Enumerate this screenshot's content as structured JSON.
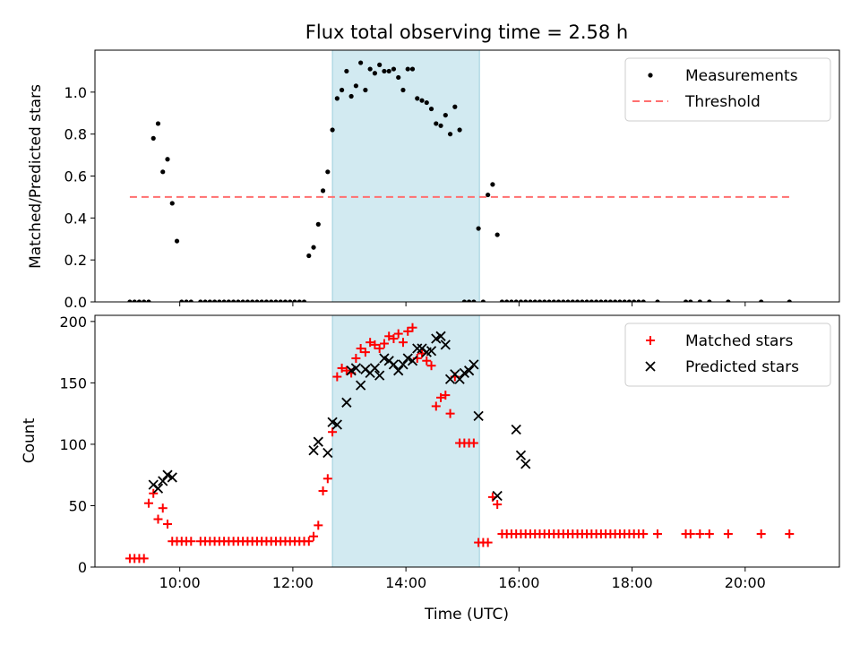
{
  "chart_data": [
    {
      "type": "scatter",
      "title": "Flux total observing time = 2.58 h",
      "xlabel": "",
      "ylabel": "Matched/Predicted stars",
      "ylim": [
        0,
        1.2
      ],
      "yticks": [
        "0.0",
        "0.2",
        "0.4",
        "0.6",
        "0.8",
        "1.0"
      ],
      "legend_position": "upper right",
      "shaded_interval": [
        "12:42",
        "15:18"
      ],
      "shade_color": "#add8e6",
      "series": [
        {
          "name": "Measurements",
          "marker": "dot",
          "color": "#000000",
          "x": [
            "09:07",
            "09:12",
            "09:17",
            "09:22",
            "09:27",
            "09:32",
            "09:37",
            "09:42",
            "09:47",
            "09:52",
            "09:57",
            "10:02",
            "10:07",
            "10:12",
            "10:22",
            "10:27",
            "10:32",
            "10:37",
            "10:42",
            "10:47",
            "10:52",
            "10:57",
            "11:02",
            "11:07",
            "11:12",
            "11:17",
            "11:22",
            "11:27",
            "11:32",
            "11:37",
            "11:42",
            "11:47",
            "11:52",
            "11:57",
            "12:02",
            "12:07",
            "12:12",
            "12:17",
            "12:22",
            "12:27",
            "12:32",
            "12:37",
            "12:42",
            "12:47",
            "12:52",
            "12:57",
            "13:02",
            "13:07",
            "13:12",
            "13:17",
            "13:22",
            "13:27",
            "13:32",
            "13:37",
            "13:42",
            "13:47",
            "13:52",
            "13:57",
            "14:02",
            "14:07",
            "14:12",
            "14:17",
            "14:22",
            "14:27",
            "14:32",
            "14:37",
            "14:42",
            "14:47",
            "14:52",
            "14:57",
            "15:02",
            "15:07",
            "15:12",
            "15:17",
            "15:22",
            "15:27",
            "15:32",
            "15:37",
            "15:42",
            "15:47",
            "15:52",
            "15:57",
            "16:02",
            "16:07",
            "16:12",
            "16:17",
            "16:22",
            "16:27",
            "16:32",
            "16:37",
            "16:42",
            "16:47",
            "16:52",
            "16:57",
            "17:02",
            "17:07",
            "17:12",
            "17:17",
            "17:22",
            "17:27",
            "17:32",
            "17:37",
            "17:42",
            "17:47",
            "17:52",
            "17:57",
            "18:02",
            "18:07",
            "18:12",
            "18:27",
            "18:57",
            "19:02",
            "19:12",
            "19:22",
            "19:42",
            "20:17",
            "20:47"
          ],
          "y": [
            0,
            0,
            0,
            0,
            0,
            0.78,
            0.85,
            0.62,
            0.68,
            0.47,
            0.29,
            0,
            0,
            0,
            0,
            0,
            0,
            0,
            0,
            0,
            0,
            0,
            0,
            0,
            0,
            0,
            0,
            0,
            0,
            0,
            0,
            0,
            0,
            0,
            0,
            0,
            0,
            0.22,
            0.26,
            0.37,
            0.53,
            0.62,
            0.82,
            0.97,
            1.01,
            1.1,
            0.98,
            1.03,
            1.14,
            1.01,
            1.11,
            1.09,
            1.13,
            1.1,
            1.1,
            1.11,
            1.07,
            1.01,
            1.11,
            1.11,
            0.97,
            0.96,
            0.95,
            0.92,
            0.85,
            0.84,
            0.89,
            0.8,
            0.93,
            0.82,
            0,
            0,
            0,
            0.35,
            0,
            0.51,
            0.56,
            0.32,
            0,
            0,
            0,
            0,
            0,
            0,
            0,
            0,
            0,
            0,
            0,
            0,
            0,
            0,
            0,
            0,
            0,
            0,
            0,
            0,
            0,
            0,
            0,
            0,
            0,
            0,
            0,
            0,
            0,
            0,
            0,
            0,
            0,
            0,
            0,
            0,
            0,
            0,
            0
          ]
        },
        {
          "name": "Threshold",
          "line_style": "dashed",
          "color": "#ff6f6f",
          "x": [
            "09:07",
            "20:47"
          ],
          "y": [
            0.5,
            0.5
          ]
        }
      ]
    },
    {
      "type": "scatter",
      "title": "",
      "xlabel": "Time (UTC)",
      "ylabel": "Count",
      "ylim": [
        0,
        205
      ],
      "yticks": [
        "0",
        "50",
        "100",
        "150",
        "200"
      ],
      "xlim": [
        "08:30",
        "21:40"
      ],
      "xticks": [
        "10:00",
        "12:00",
        "14:00",
        "16:00",
        "18:00",
        "20:00"
      ],
      "legend_position": "upper right",
      "shaded_interval": [
        "12:42",
        "15:18"
      ],
      "shade_color": "#add8e6",
      "series": [
        {
          "name": "Matched stars",
          "marker": "plus",
          "color": "#ff0000",
          "x": [
            "09:07",
            "09:12",
            "09:17",
            "09:22",
            "09:27",
            "09:32",
            "09:37",
            "09:42",
            "09:47",
            "09:52",
            "09:57",
            "10:02",
            "10:07",
            "10:12",
            "10:22",
            "10:27",
            "10:32",
            "10:37",
            "10:42",
            "10:47",
            "10:52",
            "10:57",
            "11:02",
            "11:07",
            "11:12",
            "11:17",
            "11:22",
            "11:27",
            "11:32",
            "11:37",
            "11:42",
            "11:47",
            "11:52",
            "11:57",
            "12:02",
            "12:07",
            "12:12",
            "12:17",
            "12:22",
            "12:27",
            "12:32",
            "12:37",
            "12:42",
            "12:47",
            "12:52",
            "12:57",
            "13:02",
            "13:07",
            "13:12",
            "13:17",
            "13:22",
            "13:27",
            "13:32",
            "13:37",
            "13:42",
            "13:47",
            "13:52",
            "13:57",
            "14:02",
            "14:07",
            "14:12",
            "14:17",
            "14:22",
            "14:27",
            "14:32",
            "14:37",
            "14:42",
            "14:47",
            "14:52",
            "14:57",
            "15:02",
            "15:07",
            "15:12",
            "15:17",
            "15:22",
            "15:27",
            "15:32",
            "15:37",
            "15:42",
            "15:47",
            "15:52",
            "15:57",
            "16:02",
            "16:07",
            "16:12",
            "16:17",
            "16:22",
            "16:27",
            "16:32",
            "16:37",
            "16:42",
            "16:47",
            "16:52",
            "16:57",
            "17:02",
            "17:07",
            "17:12",
            "17:17",
            "17:22",
            "17:27",
            "17:32",
            "17:37",
            "17:42",
            "17:47",
            "17:52",
            "17:57",
            "18:02",
            "18:07",
            "18:12",
            "18:27",
            "18:57",
            "19:02",
            "19:12",
            "19:22",
            "19:42",
            "20:17",
            "20:47"
          ],
          "y": [
            7,
            7,
            7,
            7,
            52,
            60,
            39,
            48,
            35,
            21,
            21,
            21,
            21,
            21,
            21,
            21,
            21,
            21,
            21,
            21,
            21,
            21,
            21,
            21,
            21,
            21,
            21,
            21,
            21,
            21,
            21,
            21,
            21,
            21,
            21,
            21,
            21,
            21,
            25,
            34,
            62,
            72,
            110,
            155,
            162,
            160,
            158,
            170,
            178,
            175,
            183,
            181,
            178,
            182,
            188,
            186,
            190,
            183,
            192,
            195,
            170,
            174,
            168,
            164,
            131,
            138,
            140,
            125,
            155,
            101,
            101,
            101,
            101,
            20,
            20,
            20,
            57,
            51,
            27,
            27,
            27,
            27,
            27,
            27,
            27,
            27,
            27,
            27,
            27,
            27,
            27,
            27,
            27,
            27,
            27,
            27,
            27,
            27,
            27,
            27,
            27,
            27,
            27,
            27,
            27,
            27,
            27,
            27,
            27,
            27,
            27,
            27,
            27,
            27,
            27,
            27,
            27
          ]
        },
        {
          "name": "Predicted stars",
          "marker": "x",
          "color": "#000000",
          "x": [
            "09:32",
            "09:37",
            "09:42",
            "09:47",
            "09:52",
            "12:22",
            "12:27",
            "12:37",
            "12:42",
            "12:47",
            "12:57",
            "13:02",
            "13:07",
            "13:12",
            "13:17",
            "13:22",
            "13:27",
            "13:32",
            "13:37",
            "13:42",
            "13:47",
            "13:52",
            "13:57",
            "14:02",
            "14:07",
            "14:12",
            "14:17",
            "14:22",
            "14:27",
            "14:32",
            "14:37",
            "14:42",
            "14:47",
            "14:52",
            "14:57",
            "15:02",
            "15:07",
            "15:12",
            "15:17",
            "15:37",
            "15:57",
            "16:02",
            "16:07"
          ],
          "y": [
            67,
            64,
            70,
            75,
            73,
            95,
            102,
            93,
            118,
            116,
            134,
            160,
            162,
            148,
            161,
            158,
            162,
            156,
            170,
            168,
            165,
            160,
            165,
            170,
            168,
            178,
            178,
            175,
            176,
            186,
            188,
            181,
            153,
            157,
            153,
            158,
            160,
            165,
            123,
            58,
            112,
            91,
            84
          ]
        }
      ]
    }
  ]
}
